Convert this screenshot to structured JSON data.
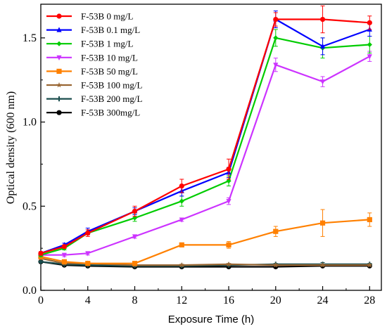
{
  "chart_data": {
    "type": "line",
    "title": "",
    "xlabel": "Exposure Time (h)",
    "ylabel": "Optical density (600 nm)",
    "xlim": [
      0,
      29
    ],
    "ylim": [
      0,
      1.7
    ],
    "xticks": [
      0,
      4,
      8,
      12,
      16,
      20,
      24,
      28
    ],
    "yticks": [
      0.0,
      0.5,
      1.0,
      1.5
    ],
    "ytick_labels": [
      "0.0",
      "0.5",
      "1.0",
      "1.5"
    ],
    "grid": false,
    "legend": "top-left",
    "x": [
      0,
      2,
      4,
      8,
      12,
      16,
      20,
      24,
      28
    ],
    "series": [
      {
        "name": "F-53B 0 mg/L",
        "color": "#ff0000",
        "marker": "circle",
        "values": [
          0.22,
          0.26,
          0.34,
          0.47,
          0.62,
          0.72,
          1.61,
          1.61,
          1.59
        ],
        "errors": [
          0.01,
          0.01,
          0.02,
          0.03,
          0.04,
          0.06,
          0.04,
          0.08,
          0.04
        ]
      },
      {
        "name": "F-53B 0.1 mg/L",
        "color": "#0000ff",
        "marker": "triangle-up",
        "values": [
          0.22,
          0.27,
          0.35,
          0.47,
          0.59,
          0.7,
          1.61,
          1.45,
          1.55
        ],
        "errors": [
          0.01,
          0.01,
          0.02,
          0.02,
          0.03,
          0.03,
          0.05,
          0.05,
          0.04
        ]
      },
      {
        "name": "F-53B 1 mg/L",
        "color": "#00cc00",
        "marker": "diamond",
        "values": [
          0.21,
          0.25,
          0.34,
          0.43,
          0.53,
          0.65,
          1.5,
          1.44,
          1.46
        ],
        "errors": [
          0.01,
          0.01,
          0.01,
          0.02,
          0.03,
          0.03,
          0.05,
          0.06,
          0.05
        ]
      },
      {
        "name": "F-53B 10 mg/L",
        "color": "#cc33ff",
        "marker": "triangle-down",
        "values": [
          0.21,
          0.21,
          0.22,
          0.32,
          0.42,
          0.53,
          1.34,
          1.24,
          1.39
        ],
        "errors": [
          0.01,
          0.01,
          0.01,
          0.01,
          0.01,
          0.02,
          0.04,
          0.03,
          0.03
        ]
      },
      {
        "name": "F-53B 50 mg/L",
        "color": "#ff8000",
        "marker": "square",
        "values": [
          0.2,
          0.17,
          0.16,
          0.16,
          0.27,
          0.27,
          0.35,
          0.4,
          0.42
        ],
        "errors": [
          0.01,
          0.01,
          0.01,
          0.01,
          0.01,
          0.02,
          0.03,
          0.08,
          0.04
        ]
      },
      {
        "name": "F-53B 100 mg/L",
        "color": "#996633",
        "marker": "star",
        "values": [
          0.19,
          0.16,
          0.16,
          0.15,
          0.15,
          0.155,
          0.15,
          0.15,
          0.15
        ],
        "errors": [
          0.005,
          0.005,
          0.005,
          0.005,
          0.005,
          0.005,
          0.005,
          0.005,
          0.005
        ]
      },
      {
        "name": "F-53B 200 mg/L",
        "color": "#1a4d4d",
        "marker": "plus",
        "values": [
          0.17,
          0.155,
          0.15,
          0.145,
          0.145,
          0.15,
          0.155,
          0.155,
          0.155
        ],
        "errors": [
          0.005,
          0.005,
          0.005,
          0.005,
          0.005,
          0.005,
          0.005,
          0.01,
          0.005
        ]
      },
      {
        "name": "F-53B 300mg/L",
        "color": "#000000",
        "marker": "circle",
        "values": [
          0.17,
          0.15,
          0.145,
          0.14,
          0.14,
          0.14,
          0.14,
          0.145,
          0.145
        ],
        "errors": [
          0.005,
          0.005,
          0.005,
          0.005,
          0.005,
          0.005,
          0.005,
          0.005,
          0.005
        ]
      }
    ]
  }
}
